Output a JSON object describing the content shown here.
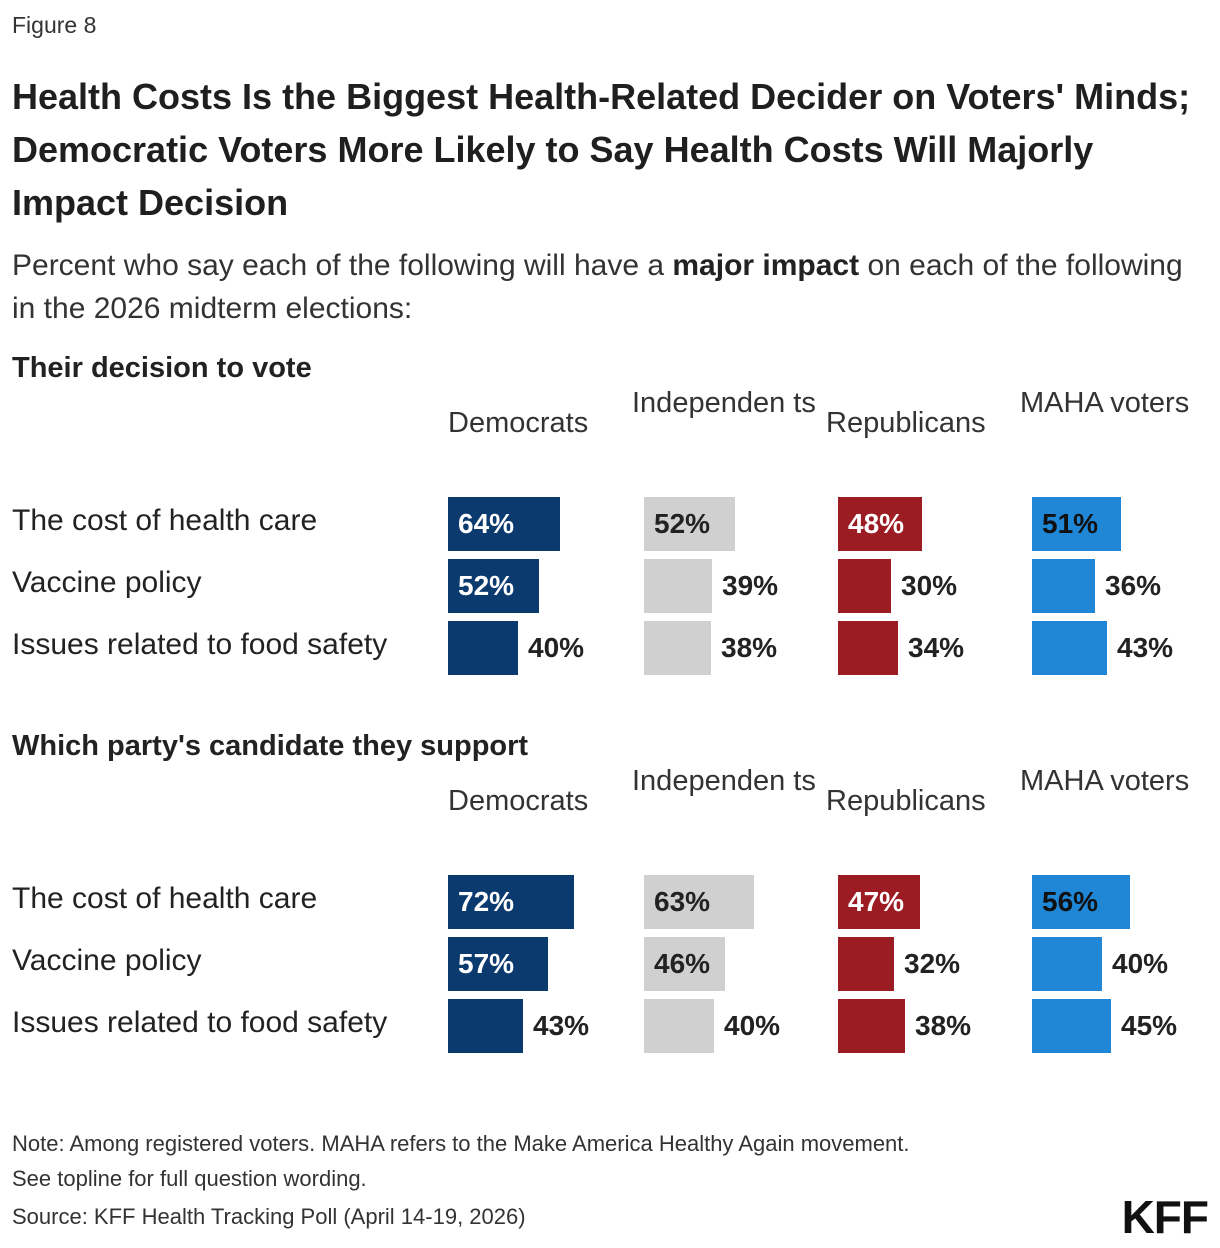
{
  "figure_label": "Figure 8",
  "title": "Health Costs Is the Biggest Health-Related Decider on Voters' Minds; Democratic Voters More Likely to Say Health Costs Will Majorly Impact Decision",
  "subtitle_pre": "Percent who say each of the following will have a ",
  "subtitle_bold": "major impact",
  "subtitle_post": " on each of the following in the 2026 midterm elections:",
  "colors": {
    "Democrats": "#0b3a6e",
    "Independents": "#d0d0d0",
    "Republicans": "#9c1c23",
    "MAHA voters": "#1f87d6"
  },
  "chart_data": [
    {
      "type": "bar",
      "title": "Their decision to vote",
      "groups": [
        "Democrats",
        "Independen ts",
        "Republicans",
        "MAHA voters"
      ],
      "categories": [
        "The cost of health care",
        "Vaccine policy",
        "Issues related to food safety"
      ],
      "series": [
        {
          "name": "Democrats",
          "values": [
            64,
            52,
            40
          ]
        },
        {
          "name": "Independents",
          "values": [
            52,
            39,
            38
          ]
        },
        {
          "name": "Republicans",
          "values": [
            48,
            30,
            34
          ]
        },
        {
          "name": "MAHA voters",
          "values": [
            51,
            36,
            43
          ]
        }
      ]
    },
    {
      "type": "bar",
      "title": "Which party's candidate they support",
      "groups": [
        "Democrats",
        "Independen ts",
        "Republicans",
        "MAHA voters"
      ],
      "categories": [
        "The cost of health care",
        "Vaccine policy",
        "Issues related to food safety"
      ],
      "series": [
        {
          "name": "Democrats",
          "values": [
            72,
            57,
            43
          ]
        },
        {
          "name": "Independents",
          "values": [
            63,
            46,
            40
          ]
        },
        {
          "name": "Republicans",
          "values": [
            47,
            32,
            38
          ]
        },
        {
          "name": "MAHA voters",
          "values": [
            56,
            40,
            45
          ]
        }
      ]
    }
  ],
  "note_line1": "Note: Among registered voters. MAHA refers to the Make America Healthy Again movement.",
  "note_line2": "See topline for full question wording.",
  "source": "Source: KFF Health Tracking Poll (April 14-19, 2026)",
  "logo": "KFF"
}
